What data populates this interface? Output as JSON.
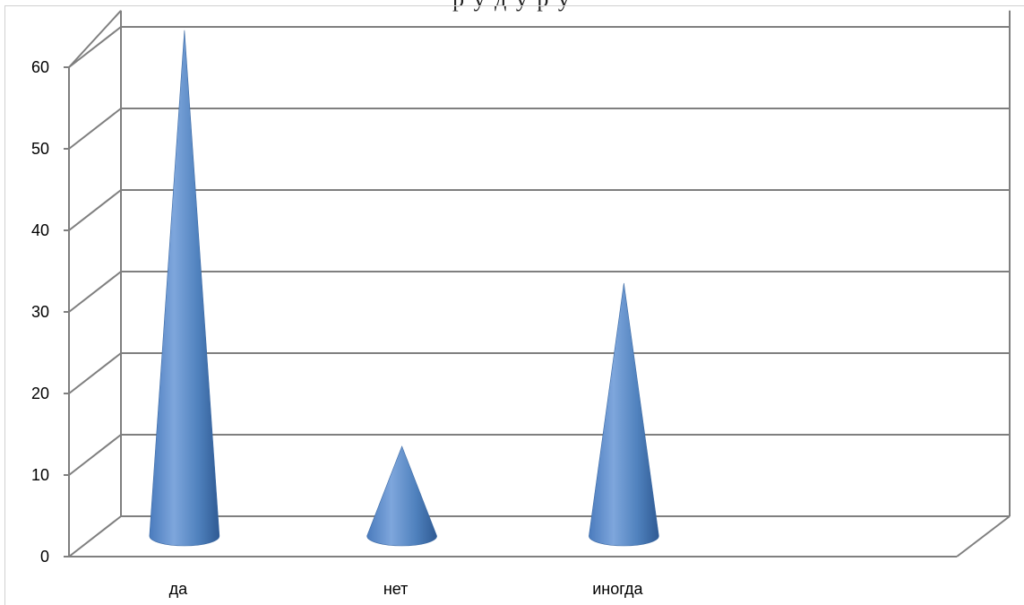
{
  "header": {
    "clipped_text": "р      у   д     у  р   у"
  },
  "chart_data": {
    "type": "bar",
    "bar_shape": "cone",
    "style": "3d",
    "categories": [
      "да",
      "нет",
      "иногда"
    ],
    "values": [
      62,
      11,
      31
    ],
    "ylim": [
      0,
      60
    ],
    "yticks": [
      0,
      10,
      20,
      30,
      40,
      50,
      60
    ],
    "grid": true,
    "legend": "none",
    "title": "",
    "xlabel": "",
    "ylabel": "",
    "colors": {
      "cone": "#4f81bd",
      "cone_highlight": "#7ea6dc",
      "cone_shadow": "#2f5a93",
      "grid": "#7f7f7f"
    }
  }
}
